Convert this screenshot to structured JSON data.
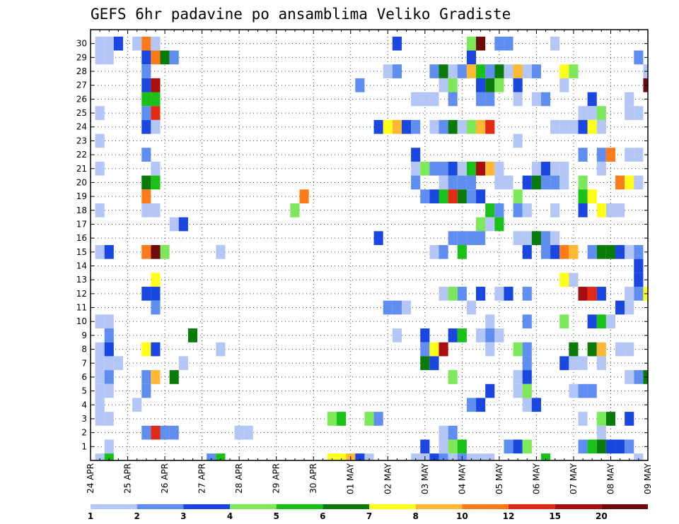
{
  "chart_data": {
    "type": "heatmap",
    "title": "GEFS 6hr padavine po ansamblima Veliko Gradiste",
    "xlabel": "",
    "ylabel": "",
    "x_ticks": [
      "24 APR",
      "25 APR",
      "26 APR",
      "27 APR",
      "28 APR",
      "29 APR",
      "30 APR",
      "01 MAY",
      "02 MAY",
      "03 MAY",
      "04 MAY",
      "05 MAY",
      "06 MAY",
      "07 MAY",
      "08 MAY",
      "09 MAY"
    ],
    "y_ticks": [
      "1",
      "2",
      "3",
      "4",
      "5",
      "6",
      "7",
      "8",
      "9",
      "10",
      "11",
      "12",
      "13",
      "14",
      "15",
      "16",
      "17",
      "18",
      "19",
      "20",
      "21",
      "22",
      "23",
      "24",
      "25",
      "26",
      "27",
      "28",
      "29",
      "30"
    ],
    "steps_per_day": 4,
    "n_steps": 60,
    "n_members": 30,
    "grid": true,
    "colorbar": {
      "tick_labels": [
        "1",
        "2",
        "3",
        "4",
        "5",
        "6",
        "7",
        "8",
        "10",
        "12",
        "15",
        "20"
      ],
      "colors": [
        "#b3c6f5",
        "#5f8ef0",
        "#1a47e0",
        "#7de85a",
        "#18c018",
        "#0a7a0a",
        "#ffff1a",
        "#ffb833",
        "#ff7a1a",
        "#e02a14",
        "#a80e0e",
        "#6e0a0a"
      ]
    },
    "cells": [
      [
        30,
        1,
        0
      ],
      [
        30,
        2,
        0
      ],
      [
        30,
        3,
        2
      ],
      [
        30,
        5,
        0
      ],
      [
        30,
        6,
        8
      ],
      [
        30,
        7,
        0
      ],
      [
        30,
        33,
        2
      ],
      [
        30,
        41,
        3
      ],
      [
        30,
        42,
        11
      ],
      [
        30,
        44,
        1
      ],
      [
        30,
        45,
        1
      ],
      [
        30,
        50,
        0
      ],
      [
        29,
        1,
        0
      ],
      [
        29,
        2,
        0
      ],
      [
        29,
        6,
        2
      ],
      [
        29,
        7,
        8
      ],
      [
        29,
        8,
        5
      ],
      [
        29,
        9,
        1
      ],
      [
        29,
        41,
        2
      ],
      [
        29,
        59,
        1
      ],
      [
        28,
        6,
        1
      ],
      [
        28,
        32,
        0
      ],
      [
        28,
        33,
        1
      ],
      [
        28,
        37,
        1
      ],
      [
        28,
        38,
        5
      ],
      [
        28,
        39,
        0
      ],
      [
        28,
        40,
        1
      ],
      [
        28,
        41,
        7
      ],
      [
        28,
        42,
        4
      ],
      [
        28,
        43,
        1
      ],
      [
        28,
        44,
        5
      ],
      [
        28,
        45,
        0
      ],
      [
        28,
        46,
        7
      ],
      [
        28,
        47,
        0
      ],
      [
        28,
        48,
        1
      ],
      [
        28,
        51,
        6
      ],
      [
        28,
        52,
        3
      ],
      [
        28,
        60,
        0
      ],
      [
        27,
        6,
        2
      ],
      [
        27,
        7,
        10
      ],
      [
        27,
        29,
        1
      ],
      [
        27,
        38,
        0
      ],
      [
        27,
        39,
        3
      ],
      [
        27,
        42,
        2
      ],
      [
        27,
        43,
        5
      ],
      [
        27,
        44,
        3
      ],
      [
        27,
        46,
        2
      ],
      [
        27,
        51,
        0
      ],
      [
        27,
        60,
        11
      ],
      [
        26,
        6,
        4
      ],
      [
        26,
        7,
        4
      ],
      [
        26,
        35,
        0
      ],
      [
        26,
        36,
        0
      ],
      [
        26,
        37,
        0
      ],
      [
        26,
        39,
        1
      ],
      [
        26,
        42,
        1
      ],
      [
        26,
        43,
        1
      ],
      [
        26,
        46,
        0
      ],
      [
        26,
        48,
        0
      ],
      [
        26,
        49,
        1
      ],
      [
        26,
        54,
        2
      ],
      [
        26,
        58,
        0
      ],
      [
        25,
        1,
        0
      ],
      [
        25,
        6,
        1
      ],
      [
        25,
        7,
        9
      ],
      [
        25,
        53,
        0
      ],
      [
        25,
        54,
        0
      ],
      [
        25,
        55,
        3
      ],
      [
        25,
        58,
        0
      ],
      [
        25,
        59,
        0
      ],
      [
        24,
        6,
        2
      ],
      [
        24,
        7,
        0
      ],
      [
        24,
        31,
        2
      ],
      [
        24,
        32,
        6
      ],
      [
        24,
        33,
        7
      ],
      [
        24,
        34,
        2
      ],
      [
        24,
        35,
        1
      ],
      [
        24,
        37,
        0
      ],
      [
        24,
        38,
        1
      ],
      [
        24,
        39,
        5
      ],
      [
        24,
        40,
        0
      ],
      [
        24,
        41,
        3
      ],
      [
        24,
        42,
        7
      ],
      [
        24,
        43,
        9
      ],
      [
        24,
        50,
        0
      ],
      [
        24,
        51,
        0
      ],
      [
        24,
        52,
        0
      ],
      [
        24,
        53,
        2
      ],
      [
        24,
        54,
        6
      ],
      [
        24,
        55,
        0
      ],
      [
        23,
        1,
        0
      ],
      [
        23,
        46,
        0
      ],
      [
        22,
        6,
        1
      ],
      [
        22,
        35,
        2
      ],
      [
        22,
        53,
        1
      ],
      [
        22,
        55,
        1
      ],
      [
        22,
        56,
        8
      ],
      [
        22,
        58,
        0
      ],
      [
        22,
        59,
        0
      ],
      [
        21,
        1,
        0
      ],
      [
        21,
        7,
        0
      ],
      [
        21,
        35,
        0
      ],
      [
        21,
        36,
        3
      ],
      [
        21,
        37,
        1
      ],
      [
        21,
        38,
        1
      ],
      [
        21,
        39,
        2
      ],
      [
        21,
        40,
        0
      ],
      [
        21,
        41,
        4
      ],
      [
        21,
        42,
        10
      ],
      [
        21,
        43,
        7
      ],
      [
        21,
        44,
        0
      ],
      [
        21,
        48,
        0
      ],
      [
        21,
        49,
        2
      ],
      [
        21,
        50,
        0
      ],
      [
        21,
        51,
        0
      ],
      [
        21,
        55,
        0
      ],
      [
        20,
        6,
        5
      ],
      [
        20,
        7,
        4
      ],
      [
        20,
        35,
        1
      ],
      [
        20,
        38,
        0
      ],
      [
        20,
        39,
        1
      ],
      [
        20,
        40,
        1
      ],
      [
        20,
        41,
        1
      ],
      [
        20,
        44,
        0
      ],
      [
        20,
        45,
        0
      ],
      [
        20,
        47,
        2
      ],
      [
        20,
        48,
        5
      ],
      [
        20,
        49,
        1
      ],
      [
        20,
        50,
        1
      ],
      [
        20,
        51,
        0
      ],
      [
        20,
        53,
        3
      ],
      [
        20,
        57,
        8
      ],
      [
        20,
        58,
        6
      ],
      [
        20,
        59,
        0
      ],
      [
        19,
        6,
        8
      ],
      [
        19,
        23,
        8
      ],
      [
        19,
        36,
        1
      ],
      [
        19,
        37,
        2
      ],
      [
        19,
        38,
        4
      ],
      [
        19,
        39,
        9
      ],
      [
        19,
        40,
        5
      ],
      [
        19,
        41,
        1
      ],
      [
        19,
        42,
        2
      ],
      [
        19,
        46,
        3
      ],
      [
        19,
        53,
        4
      ],
      [
        19,
        54,
        6
      ],
      [
        18,
        1,
        0
      ],
      [
        18,
        6,
        0
      ],
      [
        18,
        7,
        0
      ],
      [
        18,
        22,
        3
      ],
      [
        18,
        43,
        4
      ],
      [
        18,
        44,
        1
      ],
      [
        18,
        46,
        1
      ],
      [
        18,
        47,
        0
      ],
      [
        18,
        50,
        0
      ],
      [
        18,
        53,
        2
      ],
      [
        18,
        55,
        6
      ],
      [
        18,
        56,
        0
      ],
      [
        18,
        57,
        0
      ],
      [
        17,
        9,
        0
      ],
      [
        17,
        10,
        2
      ],
      [
        17,
        42,
        3
      ],
      [
        17,
        43,
        0
      ],
      [
        17,
        44,
        4
      ],
      [
        16,
        31,
        2
      ],
      [
        16,
        39,
        1
      ],
      [
        16,
        40,
        1
      ],
      [
        16,
        41,
        1
      ],
      [
        16,
        42,
        1
      ],
      [
        16,
        46,
        0
      ],
      [
        16,
        47,
        0
      ],
      [
        16,
        48,
        5
      ],
      [
        16,
        49,
        1
      ],
      [
        16,
        50,
        0
      ],
      [
        15,
        1,
        0
      ],
      [
        15,
        2,
        2
      ],
      [
        15,
        6,
        8
      ],
      [
        15,
        7,
        11
      ],
      [
        15,
        8,
        3
      ],
      [
        15,
        14,
        0
      ],
      [
        15,
        37,
        0
      ],
      [
        15,
        38,
        1
      ],
      [
        15,
        40,
        4
      ],
      [
        15,
        47,
        2
      ],
      [
        15,
        49,
        1
      ],
      [
        15,
        50,
        2
      ],
      [
        15,
        51,
        8
      ],
      [
        15,
        52,
        7
      ],
      [
        15,
        54,
        1
      ],
      [
        15,
        55,
        5
      ],
      [
        15,
        56,
        5
      ],
      [
        15,
        57,
        2
      ],
      [
        15,
        58,
        0
      ],
      [
        15,
        59,
        1
      ],
      [
        14,
        59,
        2
      ],
      [
        13,
        7,
        6
      ],
      [
        13,
        51,
        6
      ],
      [
        13,
        52,
        0
      ],
      [
        13,
        59,
        2
      ],
      [
        12,
        6,
        2
      ],
      [
        12,
        7,
        2
      ],
      [
        12,
        38,
        0
      ],
      [
        12,
        39,
        3
      ],
      [
        12,
        40,
        1
      ],
      [
        12,
        42,
        2
      ],
      [
        12,
        44,
        0
      ],
      [
        12,
        45,
        2
      ],
      [
        12,
        47,
        1
      ],
      [
        12,
        53,
        10
      ],
      [
        12,
        54,
        9
      ],
      [
        12,
        55,
        2
      ],
      [
        12,
        58,
        0
      ],
      [
        12,
        59,
        1
      ],
      [
        12,
        60,
        6
      ],
      [
        11,
        7,
        1
      ],
      [
        11,
        32,
        1
      ],
      [
        11,
        33,
        1
      ],
      [
        11,
        34,
        0
      ],
      [
        11,
        41,
        0
      ],
      [
        11,
        57,
        2
      ],
      [
        11,
        58,
        0
      ],
      [
        10,
        1,
        0
      ],
      [
        10,
        2,
        0
      ],
      [
        10,
        43,
        0
      ],
      [
        10,
        47,
        1
      ],
      [
        10,
        51,
        3
      ],
      [
        10,
        54,
        2
      ],
      [
        10,
        55,
        4
      ],
      [
        10,
        56,
        0
      ],
      [
        9,
        2,
        1
      ],
      [
        9,
        11,
        5
      ],
      [
        9,
        33,
        0
      ],
      [
        9,
        36,
        2
      ],
      [
        9,
        39,
        2
      ],
      [
        9,
        40,
        4
      ],
      [
        9,
        42,
        0
      ],
      [
        9,
        43,
        1
      ],
      [
        9,
        44,
        0
      ],
      [
        8,
        1,
        0
      ],
      [
        8,
        2,
        2
      ],
      [
        8,
        6,
        6
      ],
      [
        8,
        7,
        2
      ],
      [
        8,
        14,
        0
      ],
      [
        8,
        36,
        1
      ],
      [
        8,
        37,
        6
      ],
      [
        8,
        38,
        10
      ],
      [
        8,
        43,
        0
      ],
      [
        8,
        46,
        3
      ],
      [
        8,
        47,
        1
      ],
      [
        8,
        52,
        5
      ],
      [
        8,
        54,
        5
      ],
      [
        8,
        55,
        7
      ],
      [
        8,
        57,
        0
      ],
      [
        8,
        58,
        0
      ],
      [
        7,
        1,
        0
      ],
      [
        7,
        2,
        0
      ],
      [
        7,
        3,
        0
      ],
      [
        7,
        10,
        0
      ],
      [
        7,
        36,
        5
      ],
      [
        7,
        37,
        2
      ],
      [
        7,
        47,
        1
      ],
      [
        7,
        51,
        2
      ],
      [
        7,
        52,
        0
      ],
      [
        7,
        53,
        0
      ],
      [
        7,
        55,
        0
      ],
      [
        6,
        1,
        0
      ],
      [
        6,
        2,
        1
      ],
      [
        6,
        6,
        1
      ],
      [
        6,
        7,
        7
      ],
      [
        6,
        9,
        5
      ],
      [
        6,
        39,
        3
      ],
      [
        6,
        46,
        0
      ],
      [
        6,
        47,
        2
      ],
      [
        6,
        58,
        0
      ],
      [
        6,
        59,
        1
      ],
      [
        6,
        60,
        5
      ],
      [
        5,
        1,
        0
      ],
      [
        5,
        2,
        0
      ],
      [
        5,
        6,
        1
      ],
      [
        5,
        43,
        2
      ],
      [
        5,
        46,
        0
      ],
      [
        5,
        47,
        3
      ],
      [
        5,
        52,
        0
      ],
      [
        5,
        53,
        1
      ],
      [
        5,
        54,
        1
      ],
      [
        4,
        1,
        0
      ],
      [
        4,
        5,
        0
      ],
      [
        4,
        41,
        1
      ],
      [
        4,
        42,
        2
      ],
      [
        4,
        47,
        0
      ],
      [
        4,
        48,
        2
      ],
      [
        3,
        1,
        0
      ],
      [
        3,
        2,
        0
      ],
      [
        3,
        26,
        3
      ],
      [
        3,
        27,
        4
      ],
      [
        3,
        30,
        3
      ],
      [
        3,
        31,
        1
      ],
      [
        3,
        53,
        0
      ],
      [
        3,
        55,
        3
      ],
      [
        3,
        56,
        5
      ],
      [
        3,
        58,
        2
      ],
      [
        2,
        6,
        1
      ],
      [
        2,
        7,
        9
      ],
      [
        2,
        8,
        1
      ],
      [
        2,
        9,
        1
      ],
      [
        2,
        16,
        0
      ],
      [
        2,
        17,
        0
      ],
      [
        2,
        38,
        0
      ],
      [
        2,
        39,
        1
      ],
      [
        2,
        55,
        0
      ],
      [
        1,
        2,
        0
      ],
      [
        1,
        36,
        2
      ],
      [
        1,
        38,
        0
      ],
      [
        1,
        39,
        3
      ],
      [
        1,
        40,
        4
      ],
      [
        1,
        45,
        1
      ],
      [
        1,
        46,
        2
      ],
      [
        1,
        47,
        3
      ],
      [
        1,
        53,
        1
      ],
      [
        1,
        54,
        4
      ],
      [
        1,
        55,
        5
      ],
      [
        1,
        56,
        2
      ],
      [
        1,
        57,
        2
      ],
      [
        1,
        58,
        1
      ],
      [
        0,
        1,
        0
      ],
      [
        0,
        2,
        4
      ],
      [
        0,
        13,
        1
      ],
      [
        0,
        14,
        4
      ],
      [
        0,
        26,
        6
      ],
      [
        0,
        27,
        6
      ],
      [
        0,
        28,
        7
      ],
      [
        0,
        29,
        2
      ],
      [
        0,
        30,
        0
      ],
      [
        0,
        35,
        0
      ],
      [
        0,
        36,
        0
      ],
      [
        0,
        37,
        2
      ],
      [
        0,
        38,
        1
      ],
      [
        0,
        39,
        0
      ],
      [
        0,
        40,
        1
      ],
      [
        0,
        41,
        0
      ],
      [
        0,
        42,
        0
      ],
      [
        0,
        43,
        0
      ],
      [
        0,
        49,
        4
      ],
      [
        0,
        59,
        0
      ]
    ]
  }
}
